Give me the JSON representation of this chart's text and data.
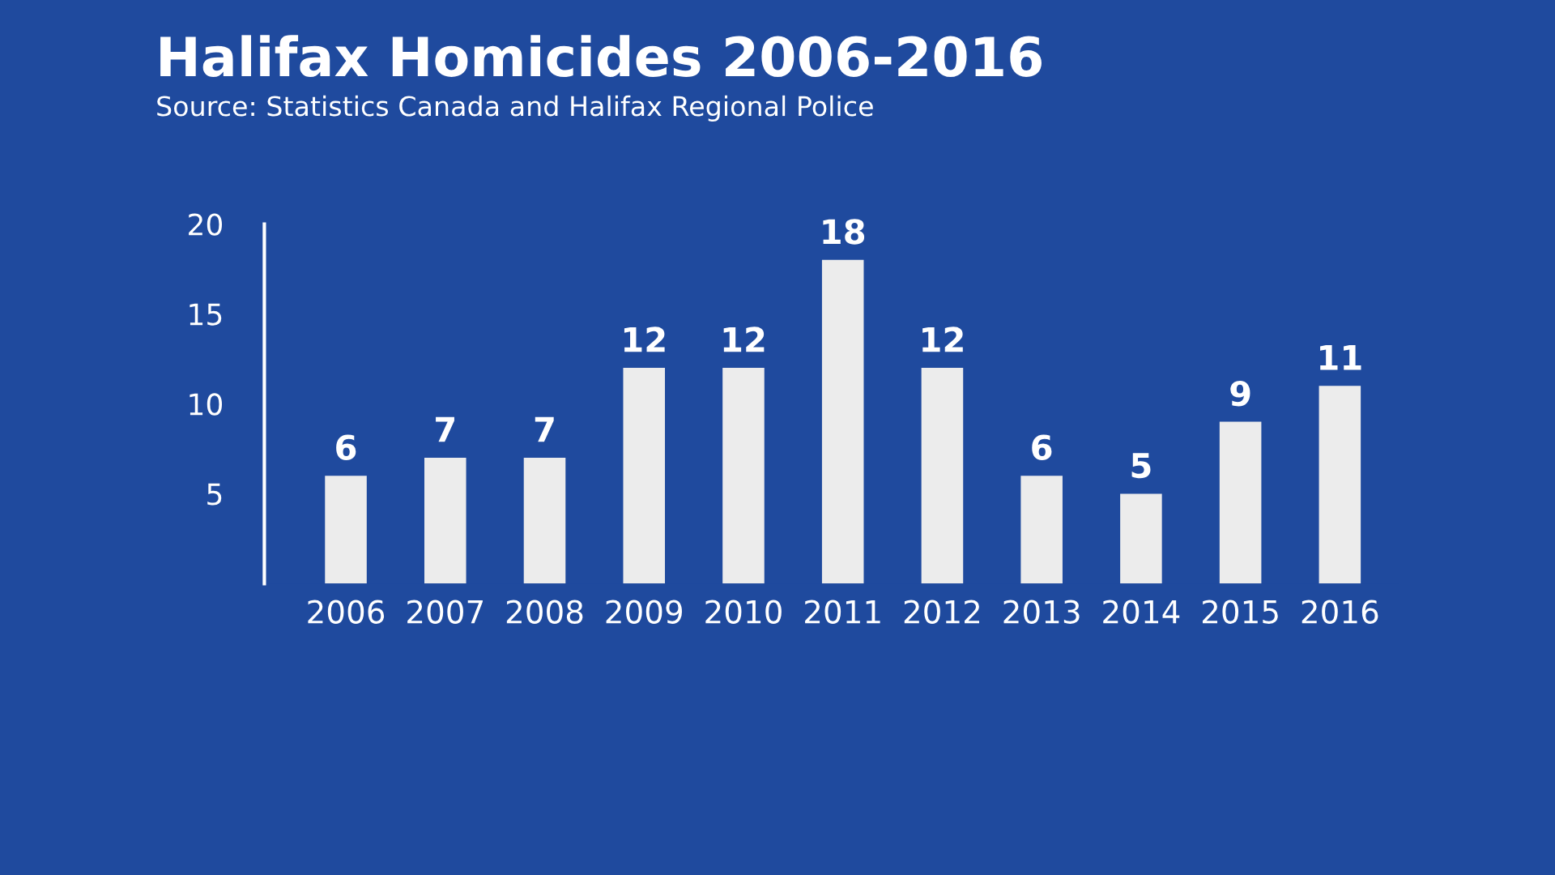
{
  "chart_data": {
    "type": "bar",
    "title": "Halifax Homicides 2006-2016",
    "subtitle": "Source: Statistics Canada and Halifax Regional Police",
    "categories": [
      "2006",
      "2007",
      "2008",
      "2009",
      "2010",
      "2011",
      "2012",
      "2013",
      "2014",
      "2015",
      "2016"
    ],
    "values": [
      6,
      7,
      7,
      12,
      12,
      18,
      12,
      6,
      5,
      9,
      11
    ],
    "color": "#ececec",
    "ylim": [
      0,
      20
    ],
    "yticks": [
      5,
      10,
      15,
      20
    ],
    "grid": false,
    "data_labels": true
  }
}
